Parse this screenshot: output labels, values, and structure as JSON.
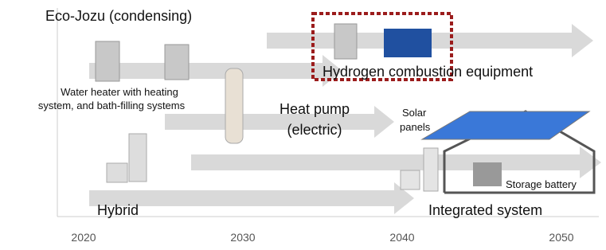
{
  "labels": {
    "eco_jozu": "Eco-Jozu (condensing)",
    "water_heater": [
      "Water heater with heating",
      "system, and bath-filling systems"
    ],
    "hydrogen": "Hydrogen combustion equipment",
    "heat_pump": [
      "Heat pump",
      "(electric)"
    ],
    "solar": [
      "Solar",
      "panels"
    ],
    "storage": "Storage battery",
    "hybrid": "Hybrid",
    "integrated": "Integrated system"
  },
  "axis": {
    "years": [
      "2020",
      "2030",
      "2040",
      "2050"
    ]
  }
}
